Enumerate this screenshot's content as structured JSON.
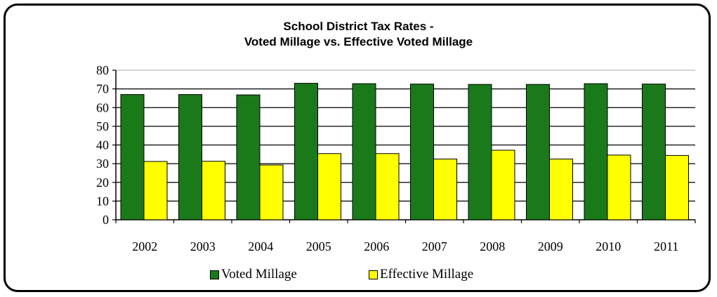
{
  "chart_data": {
    "type": "bar",
    "title": "School District Tax Rates -",
    "subtitle": "Voted Millage vs. Effective Voted Millage",
    "categories": [
      "2002",
      "2003",
      "2004",
      "2005",
      "2006",
      "2007",
      "2008",
      "2009",
      "2010",
      "2011"
    ],
    "series": [
      {
        "name": "Voted Millage",
        "color": "#1a7a1a",
        "values": [
          67.0,
          67.0,
          66.8,
          73.0,
          72.8,
          72.6,
          72.4,
          72.4,
          72.8,
          72.6
        ]
      },
      {
        "name": "Effective Millage",
        "color": "#ffff00",
        "values": [
          31.2,
          31.3,
          29.3,
          35.4,
          35.4,
          32.5,
          37.2,
          32.5,
          34.6,
          34.4
        ]
      }
    ],
    "y_ticks": [
      "0",
      "10",
      "20",
      "30",
      "40",
      "50",
      "60",
      "70",
      "80"
    ],
    "ylim": [
      0,
      80
    ],
    "grid": true,
    "legend": "bottom"
  }
}
